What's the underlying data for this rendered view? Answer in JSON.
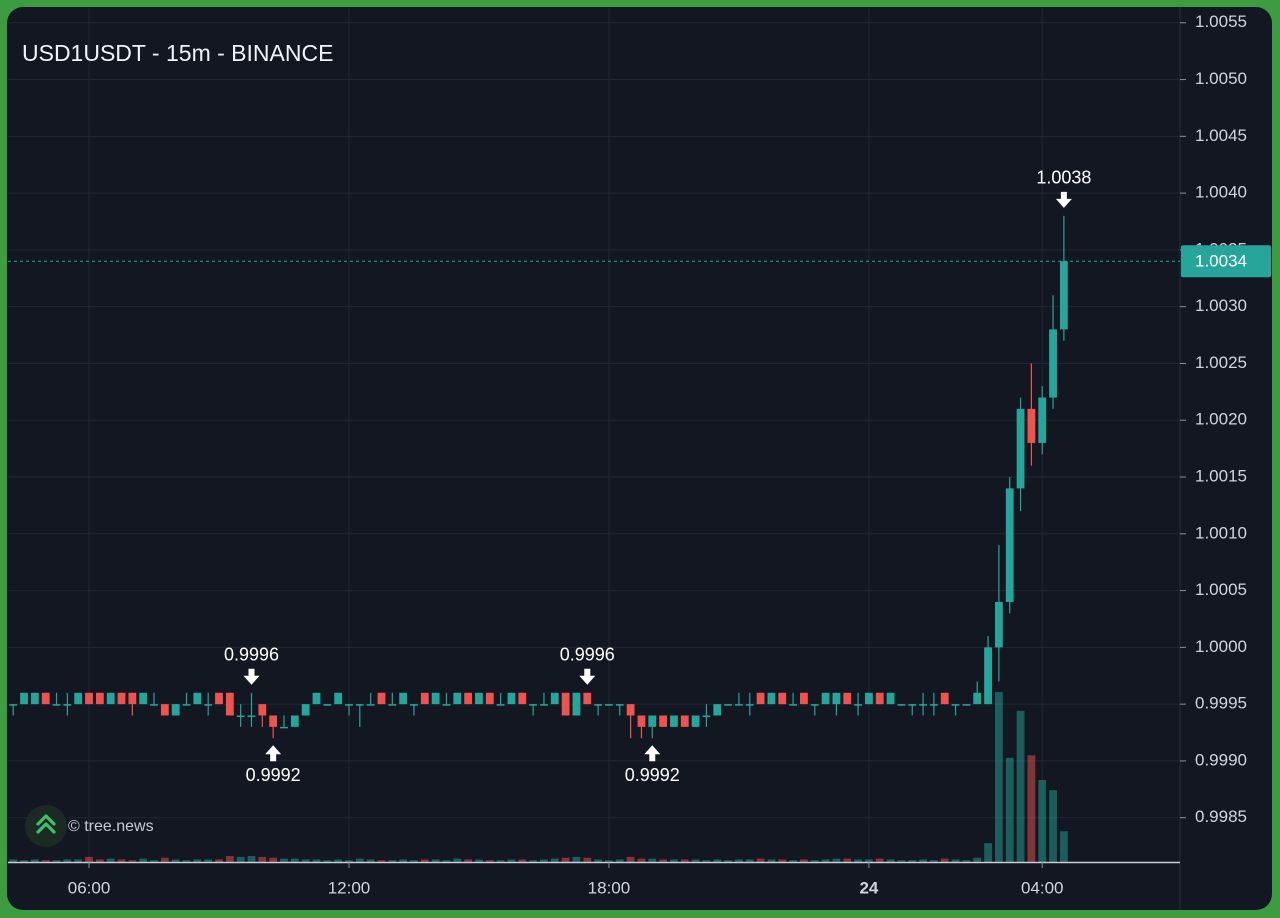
{
  "chart_data": {
    "type": "candlestick",
    "title": "USD1USDT - 15m - BINANCE",
    "watermark": "© tree.news",
    "up_color": "#26a69a",
    "down_color": "#ef5350",
    "grid": true,
    "x": [
      4.25,
      4.5,
      4.75,
      5,
      5.25,
      5.5,
      5.75,
      6,
      6.25,
      6.5,
      6.75,
      7,
      7.25,
      7.5,
      7.75,
      8,
      8.25,
      8.5,
      8.75,
      9,
      9.25,
      9.5,
      9.75,
      10,
      10.25,
      10.5,
      10.75,
      11,
      11.25,
      11.5,
      11.75,
      12,
      12.25,
      12.5,
      12.75,
      13,
      13.25,
      13.5,
      13.75,
      14,
      14.25,
      14.5,
      14.75,
      15,
      15.25,
      15.5,
      15.75,
      16,
      16.25,
      16.5,
      16.75,
      17,
      17.25,
      17.5,
      17.75,
      18,
      18.25,
      18.5,
      18.75,
      19,
      19.25,
      19.5,
      19.75,
      20,
      20.25,
      20.5,
      20.75,
      21,
      21.25,
      21.5,
      21.75,
      22,
      22.25,
      22.5,
      22.75,
      23,
      23.25,
      23.5,
      23.75,
      24,
      24.25,
      24.5,
      24.75,
      25,
      25.25,
      25.5,
      25.75,
      26,
      26.25,
      26.5,
      26.75,
      27,
      27.25,
      27.5,
      27.75,
      28,
      28.25,
      28.5
    ],
    "open": [
      0.9995,
      0.9995,
      0.9995,
      0.9996,
      0.9995,
      0.9995,
      0.9995,
      0.9996,
      0.9996,
      0.9995,
      0.9996,
      0.9996,
      0.9995,
      0.9995,
      0.9995,
      0.9994,
      0.9995,
      0.9995,
      0.9995,
      0.9996,
      0.9996,
      0.9994,
      0.9994,
      0.9995,
      0.9994,
      0.9993,
      0.9993,
      0.9994,
      0.9995,
      0.9995,
      0.9995,
      0.9995,
      0.9995,
      0.9995,
      0.9996,
      0.9995,
      0.9995,
      0.9995,
      0.9996,
      0.9995,
      0.9995,
      0.9995,
      0.9996,
      0.9995,
      0.9996,
      0.9995,
      0.9995,
      0.9996,
      0.9995,
      0.9995,
      0.9995,
      0.9996,
      0.9994,
      0.9996,
      0.9995,
      0.9995,
      0.9995,
      0.9995,
      0.9994,
      0.9993,
      0.9994,
      0.9993,
      0.9994,
      0.9993,
      0.9994,
      0.9994,
      0.9995,
      0.9995,
      0.9995,
      0.9996,
      0.9995,
      0.9996,
      0.9995,
      0.9996,
      0.9995,
      0.9995,
      0.9995,
      0.9996,
      0.9995,
      0.9995,
      0.9996,
      0.9995,
      0.9995,
      0.9995,
      0.9995,
      0.9995,
      0.9996,
      0.9995,
      0.9995,
      0.9995,
      0.9995,
      1.0,
      1.0004,
      1.0014,
      1.0021,
      1.0018,
      1.0022,
      1.0028
    ],
    "high": [
      0.9995,
      0.9996,
      0.9996,
      0.9996,
      0.9996,
      0.9996,
      0.9996,
      0.9996,
      0.9996,
      0.9996,
      0.9996,
      0.9996,
      0.9996,
      0.9996,
      0.9995,
      0.9995,
      0.9996,
      0.9996,
      0.9996,
      0.9996,
      0.9996,
      0.9995,
      0.9996,
      0.9995,
      0.9994,
      0.9994,
      0.9994,
      0.9995,
      0.9996,
      0.9995,
      0.9996,
      0.9995,
      0.9995,
      0.9996,
      0.9996,
      0.9996,
      0.9996,
      0.9995,
      0.9996,
      0.9996,
      0.9996,
      0.9996,
      0.9996,
      0.9996,
      0.9996,
      0.9996,
      0.9996,
      0.9996,
      0.9995,
      0.9996,
      0.9996,
      0.9996,
      0.9996,
      0.9996,
      0.9995,
      0.9995,
      0.9995,
      0.9995,
      0.9994,
      0.9994,
      0.9994,
      0.9994,
      0.9994,
      0.9994,
      0.9995,
      0.9995,
      0.9995,
      0.9996,
      0.9996,
      0.9996,
      0.9996,
      0.9996,
      0.9996,
      0.9996,
      0.9995,
      0.9996,
      0.9996,
      0.9996,
      0.9996,
      0.9996,
      0.9996,
      0.9996,
      0.9995,
      0.9995,
      0.9996,
      0.9996,
      0.9996,
      0.9995,
      0.9995,
      0.9997,
      1.0001,
      1.0009,
      1.0015,
      1.0022,
      1.0025,
      1.0023,
      1.0031,
      1.0038
    ],
    "low": [
      0.9994,
      0.9995,
      0.9995,
      0.9995,
      0.9995,
      0.9994,
      0.9995,
      0.9995,
      0.9995,
      0.9995,
      0.9995,
      0.9994,
      0.9995,
      0.9995,
      0.9994,
      0.9994,
      0.9995,
      0.9995,
      0.9994,
      0.9995,
      0.9994,
      0.9993,
      0.9993,
      0.9993,
      0.9992,
      0.9993,
      0.9993,
      0.9994,
      0.9995,
      0.9995,
      0.9995,
      0.9994,
      0.9993,
      0.9995,
      0.9995,
      0.9995,
      0.9995,
      0.9994,
      0.9995,
      0.9995,
      0.9995,
      0.9995,
      0.9995,
      0.9995,
      0.9995,
      0.9995,
      0.9995,
      0.9995,
      0.9994,
      0.9995,
      0.9995,
      0.9994,
      0.9994,
      0.9995,
      0.9994,
      0.9995,
      0.9994,
      0.9992,
      0.9992,
      0.9992,
      0.9993,
      0.9993,
      0.9993,
      0.9993,
      0.9993,
      0.9994,
      0.9995,
      0.9995,
      0.9994,
      0.9995,
      0.9995,
      0.9995,
      0.9995,
      0.9995,
      0.9994,
      0.9995,
      0.9994,
      0.9995,
      0.9994,
      0.9995,
      0.9995,
      0.9995,
      0.9995,
      0.9994,
      0.9994,
      0.9994,
      0.9995,
      0.9994,
      0.9995,
      0.9995,
      0.9995,
      0.9997,
      1.0003,
      1.0012,
      1.0016,
      1.0017,
      1.0021,
      1.0027
    ],
    "close": [
      0.9995,
      0.9996,
      0.9996,
      0.9995,
      0.9995,
      0.9995,
      0.9996,
      0.9995,
      0.9995,
      0.9996,
      0.9995,
      0.9995,
      0.9996,
      0.9995,
      0.9994,
      0.9995,
      0.9995,
      0.9996,
      0.9995,
      0.9995,
      0.9994,
      0.9994,
      0.9994,
      0.9994,
      0.9993,
      0.9993,
      0.9994,
      0.9995,
      0.9996,
      0.9995,
      0.9996,
      0.9995,
      0.9995,
      0.9995,
      0.9995,
      0.9995,
      0.9996,
      0.9995,
      0.9995,
      0.9996,
      0.9995,
      0.9996,
      0.9995,
      0.9996,
      0.9995,
      0.9995,
      0.9996,
      0.9995,
      0.9995,
      0.9995,
      0.9996,
      0.9994,
      0.9996,
      0.9995,
      0.9995,
      0.9995,
      0.9995,
      0.9994,
      0.9993,
      0.9994,
      0.9993,
      0.9994,
      0.9993,
      0.9994,
      0.9994,
      0.9995,
      0.9995,
      0.9995,
      0.9995,
      0.9995,
      0.9996,
      0.9995,
      0.9995,
      0.9995,
      0.9995,
      0.9996,
      0.9996,
      0.9995,
      0.9995,
      0.9996,
      0.9995,
      0.9996,
      0.9995,
      0.9995,
      0.9995,
      0.9995,
      0.9995,
      0.9995,
      0.9995,
      0.9996,
      1.0,
      1.0004,
      1.0014,
      1.0021,
      1.0018,
      1.0022,
      1.0028,
      1.0034
    ],
    "volume": [
      0.3,
      0.2,
      0.3,
      0.2,
      0.2,
      0.3,
      0.3,
      0.6,
      0.3,
      0.4,
      0.3,
      0.2,
      0.4,
      0.2,
      0.5,
      0.3,
      0.2,
      0.3,
      0.3,
      0.3,
      0.7,
      0.6,
      0.7,
      0.6,
      0.5,
      0.4,
      0.4,
      0.3,
      0.3,
      0.2,
      0.3,
      0.2,
      0.4,
      0.3,
      0.2,
      0.2,
      0.3,
      0.2,
      0.3,
      0.3,
      0.2,
      0.4,
      0.3,
      0.3,
      0.2,
      0.2,
      0.3,
      0.3,
      0.2,
      0.3,
      0.4,
      0.5,
      0.6,
      0.5,
      0.3,
      0.2,
      0.3,
      0.6,
      0.4,
      0.4,
      0.3,
      0.3,
      0.3,
      0.3,
      0.2,
      0.3,
      0.2,
      0.3,
      0.3,
      0.4,
      0.3,
      0.3,
      0.2,
      0.3,
      0.2,
      0.3,
      0.4,
      0.4,
      0.3,
      0.3,
      0.4,
      0.3,
      0.2,
      0.2,
      0.3,
      0.2,
      0.4,
      0.3,
      0.2,
      0.5,
      2.2,
      19.9,
      12.2,
      17.7,
      12.5,
      9.6,
      8.4,
      3.6
    ],
    "xlim": [
      4.13,
      31.18
    ],
    "xticks": [
      {
        "value": 6,
        "label": "06:00"
      },
      {
        "value": 12,
        "label": "12:00"
      },
      {
        "value": 18,
        "label": "18:00"
      },
      24,
      {
        "value": 28,
        "label": "04:00"
      }
    ],
    "ylim": [
      0.99811,
      1.00563
    ],
    "yticks": [
      0.9985,
      {
        "value": 0.999,
        "label": "0.9990"
      },
      0.9995,
      {
        "value": 1,
        "label": "1.0000"
      },
      1.0005,
      {
        "value": 1.001,
        "label": "1.0010"
      },
      1.0015,
      {
        "value": 1.002,
        "label": "1.0020"
      },
      1.0025,
      {
        "value": 1.003,
        "label": "1.0030"
      },
      1.0035,
      {
        "value": 1.004,
        "label": "1.0040"
      },
      1.0045,
      {
        "value": 1.005,
        "label": "1.0050"
      },
      1.0055
    ],
    "y2lim": [
      0,
      100
    ],
    "high_labels": [
      {
        "x": 9.75,
        "value": 0.9996
      },
      {
        "x": 17.5,
        "value": 0.9996
      },
      {
        "x": 28.5,
        "value": 1.0038
      }
    ],
    "low_labels": [
      {
        "x": 10.25,
        "value": 0.9992
      },
      {
        "x": 19,
        "value": 0.9992
      }
    ]
  }
}
